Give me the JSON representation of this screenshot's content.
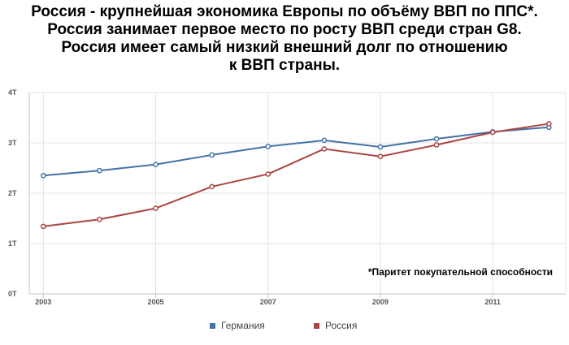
{
  "title_lines": [
    "Россия - крупнейшая экономика Европы по объёму ВВП по ППС*.",
    "Россия занимает первое место по росту ВВП среди стран G8.",
    "Россия имеет самый низкий внешний долг по отношению",
    "к ВВП страны."
  ],
  "footnote": "*Паритет покупательной способности",
  "chart_data": {
    "type": "line",
    "x": [
      2003,
      2004,
      2005,
      2006,
      2007,
      2008,
      2009,
      2010,
      2011,
      2012
    ],
    "xticks": [
      "2003",
      "2005",
      "2007",
      "2009",
      "2011"
    ],
    "xtick_values": [
      2003,
      2005,
      2007,
      2009,
      2011
    ],
    "yticks": [
      "0T",
      "1T",
      "2T",
      "3T",
      "4T"
    ],
    "ytick_values": [
      0,
      1,
      2,
      3,
      4
    ],
    "ylim": [
      0,
      4
    ],
    "xlim": [
      2002.75,
      2012.3
    ],
    "grid": true,
    "legend_position": "bottom",
    "series": [
      {
        "name": "Германия",
        "color": "#4572A7",
        "values": [
          2.35,
          2.45,
          2.57,
          2.76,
          2.93,
          3.05,
          2.92,
          3.08,
          3.22,
          3.31
        ]
      },
      {
        "name": "Россия",
        "color": "#AA4643",
        "values": [
          1.34,
          1.48,
          1.7,
          2.13,
          2.38,
          2.88,
          2.73,
          2.96,
          3.21,
          3.38
        ]
      }
    ]
  }
}
